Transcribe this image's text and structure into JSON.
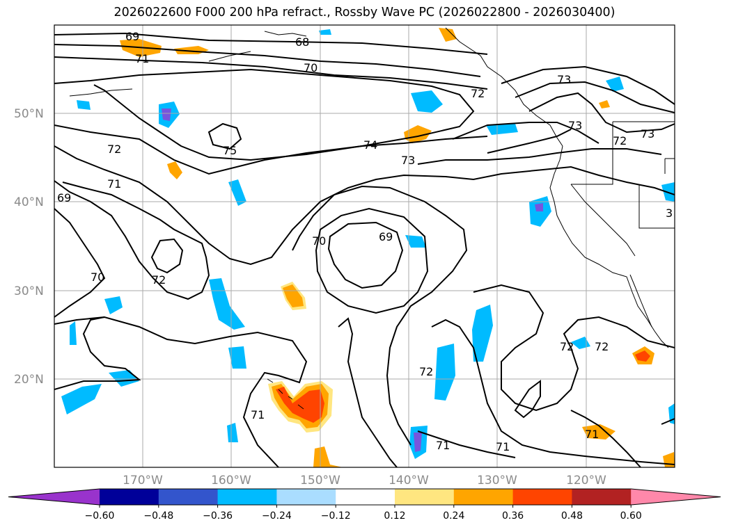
{
  "title": "2026022600 F000 200 hPa refract., Rossby Wave PC (2026022800 - 2026030400)",
  "map": {
    "lat_ticks": [
      "50°N",
      "40°N",
      "30°N",
      "20°N"
    ],
    "lon_ticks": [
      "170°W",
      "160°W",
      "150°W",
      "140°W",
      "130°W",
      "120°W"
    ],
    "contour_labels": [
      "69",
      "71",
      "70",
      "68",
      "72",
      "73",
      "73",
      "72",
      "73",
      "75",
      "74",
      "73",
      "72",
      "71",
      "69",
      "70",
      "69",
      "70",
      "72",
      "72",
      "72",
      "72",
      "71",
      "71",
      "71",
      "71",
      "3"
    ]
  },
  "colorbar": {
    "ticks": [
      "−0.60",
      "−0.48",
      "−0.36",
      "−0.24",
      "−0.12",
      "0.12",
      "0.24",
      "0.36",
      "0.48",
      "0.60"
    ],
    "colors": [
      "#9933cc",
      "#000099",
      "#3355cc",
      "#00bbff",
      "#aaddff",
      "#ffffff",
      "#ffe680",
      "#ffa500",
      "#ff4400",
      "#b22222",
      "#ff88aa"
    ]
  }
}
